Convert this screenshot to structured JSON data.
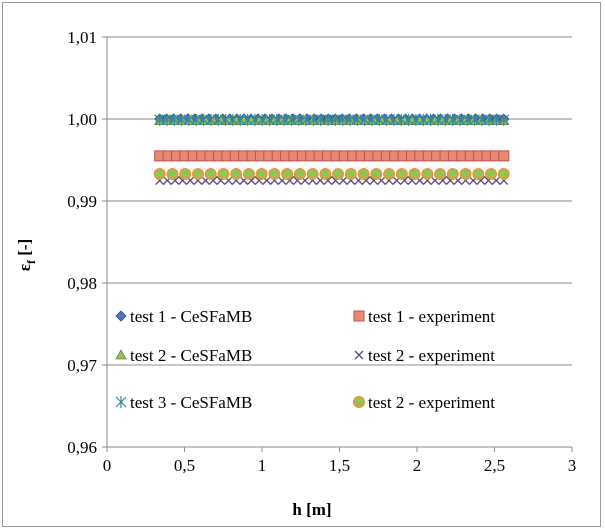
{
  "chart_data": {
    "type": "scatter",
    "xlabel": "h [m]",
    "ylabel_main": "ε",
    "ylabel_sub": "f",
    "ylabel_suffix": " [-]",
    "xlim": [
      0,
      3
    ],
    "ylim": [
      0.96,
      1.01
    ],
    "xticks": [
      0,
      0.5,
      1,
      1.5,
      2,
      2.5,
      3
    ],
    "yticks": [
      0.96,
      0.97,
      0.98,
      0.99,
      1.0,
      1.01
    ],
    "xtick_labels": [
      "0",
      "0,5",
      "1",
      "1,5",
      "2",
      "2,5",
      "3"
    ],
    "ytick_labels": [
      "0,96",
      "0,97",
      "0,98",
      "0,99",
      "1,00",
      "1,01"
    ],
    "grid": "horizontal",
    "legend_position": "bottom",
    "x_range": [
      0.34,
      2.56
    ],
    "series": [
      {
        "name": "test 1 - CeSFaMB",
        "marker": "diamond",
        "color": "#4a74b4",
        "stroke": "#2e4f86",
        "y": 1.0,
        "n": 50
      },
      {
        "name": "test 1 - experiment",
        "marker": "square",
        "color": "#e88a72",
        "stroke": "#c0504d",
        "y": 0.9955,
        "n": 42
      },
      {
        "name": "test 2 - CeSFaMB",
        "marker": "triangle",
        "color": "#9bbb59",
        "stroke": "#6f8a3a",
        "y": 0.9998,
        "n": 46
      },
      {
        "name": "test 2 - experiment",
        "marker": "x",
        "color": "#7b62a3",
        "stroke": "#5f4a86",
        "y": 0.9925,
        "n": 46
      },
      {
        "name": "test 3 - CeSFaMB",
        "marker": "asterisk",
        "color": "#4bacc6",
        "stroke": "#2f8aa3",
        "y": 0.9999,
        "n": 48
      },
      {
        "name": "test 2 - experiment",
        "marker": "circle",
        "color": "#8dc657",
        "stroke": "#f0923a",
        "y": 0.9933,
        "n": 28
      }
    ]
  }
}
